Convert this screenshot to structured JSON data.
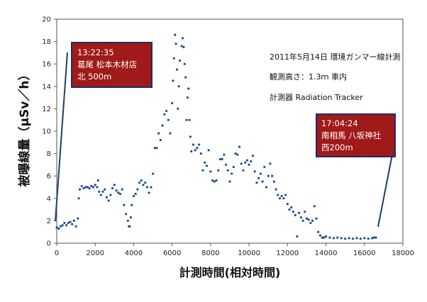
{
  "chart_data": {
    "type": "scatter",
    "title": "",
    "xlabel": "計測時間(相対時間)",
    "ylabel": "被曝線量（μSv／h）",
    "xlim": [
      0,
      18000
    ],
    "ylim": [
      0,
      20
    ],
    "x_ticks": [
      "0",
      "2000",
      "4000",
      "6000",
      "8000",
      "10000",
      "12000",
      "14000",
      "16000",
      "18000"
    ],
    "y_ticks": [
      "0",
      "2",
      "4",
      "6",
      "8",
      "10",
      "12",
      "14",
      "16",
      "18",
      "20"
    ],
    "grid": false,
    "marker_color": "#1f4e8c",
    "series": [
      {
        "points": [
          [
            0,
            1.4
          ],
          [
            100,
            1.3
          ],
          [
            200,
            1.5
          ],
          [
            300,
            1.6
          ],
          [
            400,
            1.8
          ],
          [
            500,
            1.6
          ],
          [
            600,
            1.8
          ],
          [
            700,
            1.9
          ],
          [
            800,
            1.7
          ],
          [
            900,
            2.0
          ],
          [
            1000,
            1.5
          ],
          [
            1100,
            2.2
          ],
          [
            1150,
            4.0
          ],
          [
            1200,
            4.8
          ],
          [
            1300,
            5.1
          ],
          [
            1400,
            4.9
          ],
          [
            1500,
            5.0
          ],
          [
            1600,
            5.0
          ],
          [
            1700,
            4.9
          ],
          [
            1800,
            5.1
          ],
          [
            1900,
            5.0
          ],
          [
            2000,
            5.2
          ],
          [
            2100,
            5.0
          ],
          [
            2150,
            5.6
          ],
          [
            2200,
            4.6
          ],
          [
            2300,
            4.3
          ],
          [
            2400,
            4.6
          ],
          [
            2500,
            4.8
          ],
          [
            2600,
            4.1
          ],
          [
            2700,
            3.8
          ],
          [
            2800,
            4.3
          ],
          [
            2900,
            4.9
          ],
          [
            3000,
            5.2
          ],
          [
            3100,
            4.7
          ],
          [
            3200,
            4.5
          ],
          [
            3300,
            4.4
          ],
          [
            3400,
            4.8
          ],
          [
            3500,
            3.4
          ],
          [
            3600,
            2.6
          ],
          [
            3700,
            2.0
          ],
          [
            3750,
            1.5
          ],
          [
            3800,
            1.5
          ],
          [
            3850,
            2.3
          ],
          [
            3900,
            3.4
          ],
          [
            4000,
            4.2
          ],
          [
            4100,
            4.4
          ],
          [
            4200,
            4.8
          ],
          [
            4300,
            5.4
          ],
          [
            4400,
            5.6
          ],
          [
            4500,
            5.2
          ],
          [
            4600,
            5.4
          ],
          [
            4700,
            5.0
          ],
          [
            4800,
            4.5
          ],
          [
            4900,
            5.0
          ],
          [
            5000,
            6.2
          ],
          [
            5100,
            8.5
          ],
          [
            5200,
            8.5
          ],
          [
            5300,
            9.8
          ],
          [
            5400,
            9.2
          ],
          [
            5500,
            10.5
          ],
          [
            5600,
            11.5
          ],
          [
            5700,
            11.8
          ],
          [
            5800,
            11.0
          ],
          [
            5900,
            9.8
          ],
          [
            6000,
            12.5
          ],
          [
            6050,
            14.5
          ],
          [
            6100,
            16.5
          ],
          [
            6150,
            18.6
          ],
          [
            6200,
            17.8
          ],
          [
            6250,
            15.5
          ],
          [
            6300,
            12.0
          ],
          [
            6350,
            14.0
          ],
          [
            6400,
            16.3
          ],
          [
            6500,
            17.6
          ],
          [
            6550,
            18.3
          ],
          [
            6600,
            17.5
          ],
          [
            6650,
            16.0
          ],
          [
            6700,
            14.8
          ],
          [
            6750,
            11.0
          ],
          [
            6800,
            13.0
          ],
          [
            6850,
            13.8
          ],
          [
            6900,
            11.0
          ],
          [
            6950,
            9.5
          ],
          [
            7000,
            8.2
          ],
          [
            7100,
            8.8
          ],
          [
            7200,
            8.3
          ],
          [
            7300,
            8.5
          ],
          [
            7400,
            8.8
          ],
          [
            7500,
            8.0
          ],
          [
            7600,
            6.5
          ],
          [
            7700,
            7.2
          ],
          [
            7800,
            6.9
          ],
          [
            7900,
            8.3
          ],
          [
            8000,
            6.4
          ],
          [
            8100,
            5.6
          ],
          [
            8200,
            5.5
          ],
          [
            8300,
            5.6
          ],
          [
            8400,
            6.5
          ],
          [
            8500,
            7.5
          ],
          [
            8600,
            7.5
          ],
          [
            8700,
            7.9
          ],
          [
            8800,
            7.0
          ],
          [
            8900,
            6.5
          ],
          [
            9000,
            5.5
          ],
          [
            9100,
            6.2
          ],
          [
            9200,
            6.8
          ],
          [
            9300,
            8.0
          ],
          [
            9400,
            7.9
          ],
          [
            9500,
            8.6
          ],
          [
            9600,
            7.1
          ],
          [
            9700,
            6.5
          ],
          [
            9800,
            7.2
          ],
          [
            9900,
            7.4
          ],
          [
            10000,
            7.0
          ],
          [
            10100,
            7.3
          ],
          [
            10200,
            7.8
          ],
          [
            10300,
            6.4
          ],
          [
            10400,
            5.4
          ],
          [
            10500,
            5.8
          ],
          [
            10600,
            6.2
          ],
          [
            10700,
            5.5
          ],
          [
            10800,
            6.8
          ],
          [
            10900,
            5.0
          ],
          [
            11000,
            6.0
          ],
          [
            11100,
            7.1
          ],
          [
            11200,
            6.0
          ],
          [
            11300,
            5.5
          ],
          [
            11400,
            4.8
          ],
          [
            11500,
            4.3
          ],
          [
            11600,
            4.0
          ],
          [
            11700,
            4.2
          ],
          [
            11800,
            4.0
          ],
          [
            11900,
            4.3
          ],
          [
            12000,
            3.5
          ],
          [
            12100,
            3.0
          ],
          [
            12200,
            3.2
          ],
          [
            12300,
            2.8
          ],
          [
            12400,
            2.5
          ],
          [
            12500,
            0.6
          ],
          [
            12600,
            2.7
          ],
          [
            12700,
            2.3
          ],
          [
            12800,
            2.0
          ],
          [
            12900,
            2.8
          ],
          [
            13000,
            2.2
          ],
          [
            13100,
            2.1
          ],
          [
            13200,
            1.8
          ],
          [
            13300,
            2.0
          ],
          [
            13400,
            3.3
          ],
          [
            13500,
            2.2
          ],
          [
            13600,
            1.0
          ],
          [
            13700,
            0.7
          ],
          [
            13800,
            0.5
          ],
          [
            13900,
            0.5
          ],
          [
            14000,
            0.6
          ],
          [
            14200,
            0.5
          ],
          [
            14400,
            0.45
          ],
          [
            14600,
            0.5
          ],
          [
            14800,
            0.45
          ],
          [
            15000,
            0.4
          ],
          [
            15200,
            0.45
          ],
          [
            15400,
            0.4
          ],
          [
            15600,
            0.45
          ],
          [
            15800,
            0.4
          ],
          [
            16000,
            0.45
          ],
          [
            16200,
            0.4
          ],
          [
            16400,
            0.45
          ],
          [
            16500,
            0.5
          ],
          [
            16600,
            0.5
          ]
        ]
      }
    ],
    "annotations": {
      "info": [
        "2011年5月14日 環境ガンマー線計測",
        "観測高さ：1.3ｍ 車内",
        "計測器 Radiation Tracker"
      ],
      "start_label": [
        "13:22:35",
        "葛尾 松本木材店",
        "北 500m"
      ],
      "end_label": [
        "17:04:24",
        "南相馬 八坂神社",
        "西200m"
      ],
      "callout_color": "#a01a1a"
    }
  }
}
